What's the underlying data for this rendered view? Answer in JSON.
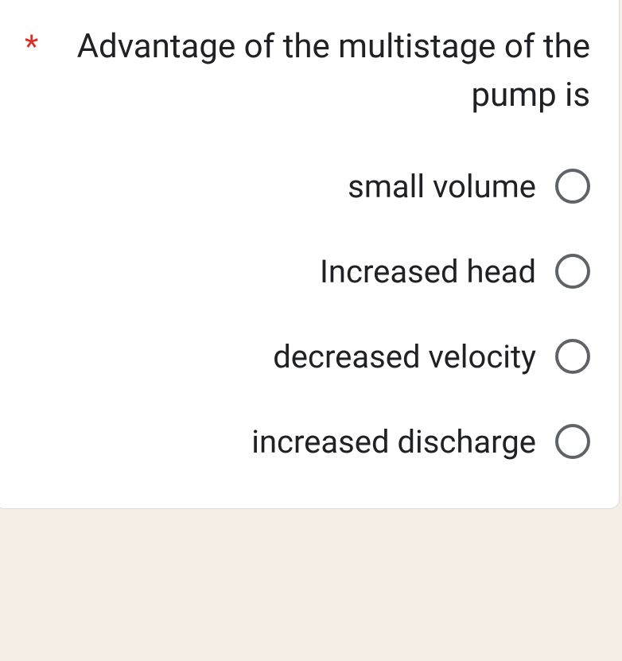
{
  "question": {
    "required_marker": "*",
    "text": "Advantage of the multistage of the pump is"
  },
  "options": [
    {
      "label": "small volume"
    },
    {
      "label": "Increased head"
    },
    {
      "label": "decreased velocity"
    },
    {
      "label": "increased discharge"
    }
  ],
  "colors": {
    "background": "#f5eee4",
    "card_bg": "#ffffff",
    "card_border": "#dadce0",
    "text": "#202124",
    "required": "#d93025",
    "radio_border": "#5f6368"
  }
}
